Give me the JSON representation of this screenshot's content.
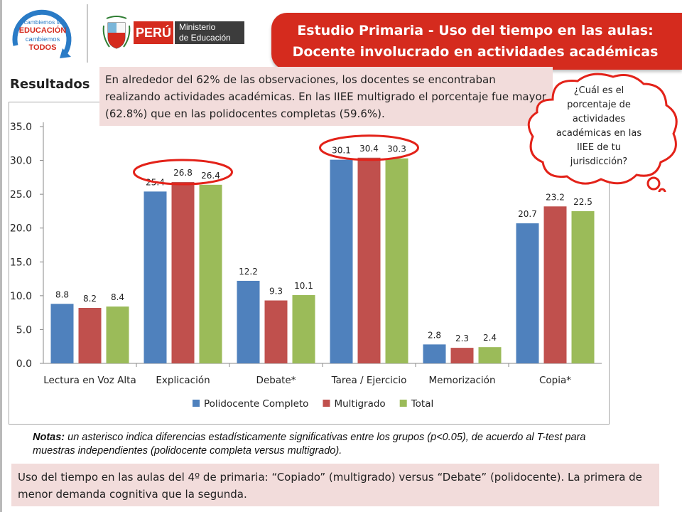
{
  "header": {
    "logo_lines": [
      "cambiemos la",
      "EDUCACIÓN",
      "cambiemos",
      "TODOS"
    ],
    "country": "PERÚ",
    "ministry_line1": "Ministerio",
    "ministry_line2": "de Educación",
    "title_line1": "Estudio Primaria - Uso del tiempo en las aulas:",
    "title_line2": "Docente involucrado en actividades académicas"
  },
  "section_label": "Resultados",
  "callout_top": "En alrededor del 62% de las observaciones, los docentes se encontraban realizando actividades académicas. En las IIEE multigrado el porcentaje fue mayor (62.8%) que en las polidocentes completas (59.6%).",
  "cloud_question": "¿Cuál es el porcentaje de actividades académicas en las IIEE de tu jurisdicción?",
  "notes_label": "Notas:",
  "notes_text": " un asterisco indica diferencias estadísticamente significativas entre los grupos (p<0.05), de acuerdo al T-test para muestras independientes (polidocente completa versus multigrado).",
  "callout_bottom": "Uso del tiempo en las aulas del 4º de primaria: “Copiado” (multigrado) versus “Debate” (polidocente). La primera de menor demanda cognitiva que la segunda.",
  "colors": {
    "accent_red": "#d52b1e",
    "callout_bg": "#f2dcdb",
    "highlight_ring": "#e32219"
  },
  "chart_data": {
    "type": "bar",
    "categories": [
      "Lectura en Voz Alta",
      "Explicación",
      "Debate*",
      "Tarea / Ejercicio",
      "Memorización",
      "Copia*"
    ],
    "series": [
      {
        "name": "Polidocente Completo",
        "color": "#4f81bd",
        "values": [
          8.8,
          25.4,
          12.2,
          30.1,
          2.8,
          20.7
        ]
      },
      {
        "name": "Multigrado",
        "color": "#c0504d",
        "values": [
          8.2,
          26.8,
          9.3,
          30.4,
          2.3,
          23.2
        ]
      },
      {
        "name": "Total",
        "color": "#9bbb59",
        "values": [
          8.4,
          26.4,
          10.1,
          30.3,
          2.4,
          22.5
        ]
      }
    ],
    "y_ticks": [
      "0.0",
      "5.0",
      "10.0",
      "15.0",
      "20.0",
      "25.0",
      "30.0",
      "35.0"
    ],
    "ylim": [
      0,
      35
    ],
    "grid": false,
    "legend_position": "bottom",
    "highlighted_categories": [
      "Explicación",
      "Tarea / Ejercicio"
    ]
  }
}
